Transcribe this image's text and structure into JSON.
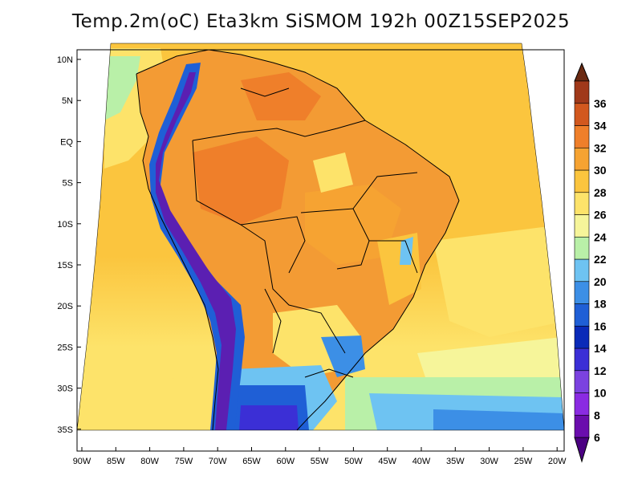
{
  "title": "Temp.2m(oC) Eta3km SiSMOM 192h 00Z15SEP2025",
  "lat_labels": [
    "10N",
    "5N",
    "EQ",
    "5S",
    "10S",
    "15S",
    "20S",
    "25S",
    "30S",
    "35S"
  ],
  "lon_labels": [
    "90W",
    "85W",
    "80W",
    "75W",
    "70W",
    "65W",
    "60W",
    "55W",
    "50W",
    "45W",
    "40W",
    "35W",
    "30W",
    "25W",
    "20W"
  ],
  "colorbar": [
    {
      "label": "6",
      "color": "#6a0dad"
    },
    {
      "label": "8",
      "color": "#8a2be2"
    },
    {
      "label": "10",
      "color": "#7b42e0"
    },
    {
      "label": "12",
      "color": "#3b2fd6"
    },
    {
      "label": "14",
      "color": "#0a2ab8"
    },
    {
      "label": "16",
      "color": "#1f5fd6"
    },
    {
      "label": "18",
      "color": "#3c8fe6"
    },
    {
      "label": "20",
      "color": "#6ec3f2"
    },
    {
      "label": "22",
      "color": "#b9f0a8"
    },
    {
      "label": "24",
      "color": "#f6f59a"
    },
    {
      "label": "26",
      "color": "#fde36a"
    },
    {
      "label": "28",
      "color": "#fbc53e"
    },
    {
      "label": "30",
      "color": "#f6a332"
    },
    {
      "label": "32",
      "color": "#ef7f2a"
    },
    {
      "label": "34",
      "color": "#d2581e"
    },
    {
      "label": "36",
      "color": "#a0391a"
    }
  ],
  "colors": {
    "ocean_warm": "#fbc53e",
    "ocean_mild": "#fde36a",
    "ocean_cool": "#f6f59a",
    "land_hot": "#f39b34",
    "land_hotter": "#ef7f2a",
    "andes_cold": "#5b1fb2",
    "andes_cool": "#2d52d0",
    "south_cold": "#1f3fcf"
  }
}
